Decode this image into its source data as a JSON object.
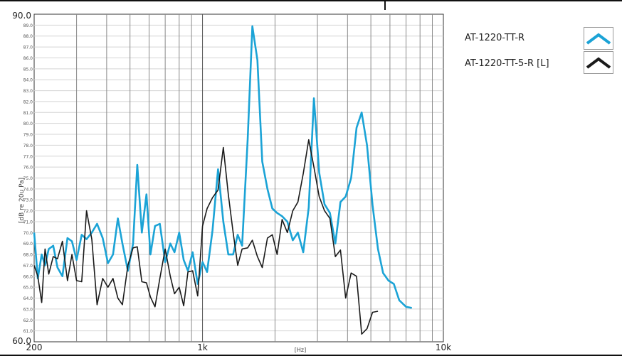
{
  "chart_data": {
    "type": "line",
    "title": "",
    "xlabel": "[Hz]",
    "ylabel": "[dB re 20u Pa]",
    "x_scale": "log",
    "xlim": [
      200,
      10000
    ],
    "ylim": [
      60,
      90
    ],
    "grid": true,
    "legend_position": "right",
    "x_ticks": [
      {
        "value": 200,
        "label": "200"
      },
      {
        "value": 1000,
        "label": "1k"
      },
      {
        "value": 10000,
        "label": "10k"
      }
    ],
    "y_ticks_major": [
      {
        "value": 90,
        "label": "90.0"
      },
      {
        "value": 60,
        "label": "60.0"
      }
    ],
    "y_ticks_minor": [
      "89.0",
      "88.0",
      "87.0",
      "86.0",
      "85.0",
      "84.0",
      "83.0",
      "82.0",
      "81.0",
      "80.0",
      "79.0",
      "78.0",
      "77.0",
      "76.0",
      "75.0",
      "74.0",
      "73.0",
      "72.0",
      "71.0",
      "70.0",
      "69.0",
      "68.0",
      "67.0",
      "66.0",
      "65.0",
      "64.0",
      "63.0",
      "62.0",
      "61.0"
    ],
    "series": [
      {
        "name": "AT-1220-TT-R",
        "color": "#1ba3d6",
        "points": [
          [
            200,
            70.0
          ],
          [
            207,
            65.8
          ],
          [
            215,
            68.0
          ],
          [
            222,
            67.0
          ],
          [
            230,
            68.5
          ],
          [
            240,
            68.8
          ],
          [
            250,
            66.8
          ],
          [
            262,
            66.0
          ],
          [
            275,
            69.5
          ],
          [
            287,
            69.2
          ],
          [
            300,
            67.5
          ],
          [
            315,
            69.8
          ],
          [
            330,
            69.4
          ],
          [
            347,
            70.0
          ],
          [
            365,
            70.8
          ],
          [
            385,
            69.5
          ],
          [
            405,
            67.2
          ],
          [
            425,
            68.0
          ],
          [
            445,
            71.3
          ],
          [
            465,
            69.0
          ],
          [
            490,
            66.5
          ],
          [
            515,
            69.0
          ],
          [
            536,
            76.2
          ],
          [
            560,
            70.0
          ],
          [
            585,
            73.5
          ],
          [
            608,
            68.0
          ],
          [
            635,
            70.6
          ],
          [
            665,
            70.8
          ],
          [
            700,
            67.3
          ],
          [
            735,
            69.0
          ],
          [
            765,
            68.2
          ],
          [
            800,
            70.0
          ],
          [
            835,
            67.5
          ],
          [
            870,
            66.5
          ],
          [
            910,
            68.2
          ],
          [
            955,
            65.3
          ],
          [
            1000,
            67.3
          ],
          [
            1045,
            66.4
          ],
          [
            1100,
            70.2
          ],
          [
            1160,
            75.8
          ],
          [
            1220,
            71.0
          ],
          [
            1280,
            68.0
          ],
          [
            1340,
            68.0
          ],
          [
            1400,
            69.8
          ],
          [
            1460,
            68.8
          ],
          [
            1540,
            78.5
          ],
          [
            1610,
            88.9
          ],
          [
            1690,
            85.8
          ],
          [
            1770,
            76.5
          ],
          [
            1860,
            74.0
          ],
          [
            1950,
            72.2
          ],
          [
            2040,
            71.8
          ],
          [
            2140,
            71.5
          ],
          [
            2250,
            71.0
          ],
          [
            2370,
            69.3
          ],
          [
            2490,
            70.0
          ],
          [
            2620,
            68.2
          ],
          [
            2760,
            72.3
          ],
          [
            2900,
            82.3
          ],
          [
            3050,
            75.5
          ],
          [
            3210,
            72.6
          ],
          [
            3380,
            71.8
          ],
          [
            3560,
            69.0
          ],
          [
            3740,
            72.8
          ],
          [
            3930,
            73.3
          ],
          [
            4140,
            75.0
          ],
          [
            4360,
            79.6
          ],
          [
            4580,
            81.0
          ],
          [
            4820,
            78.0
          ],
          [
            5080,
            72.5
          ],
          [
            5350,
            68.5
          ],
          [
            5620,
            66.3
          ],
          [
            5920,
            65.6
          ],
          [
            6230,
            65.3
          ],
          [
            6560,
            63.8
          ],
          [
            7000,
            63.2
          ],
          [
            7400,
            63.1
          ]
        ]
      },
      {
        "name": "AT-1220-TT-5-R [L]",
        "color": "#1a1a1a",
        "points": [
          [
            200,
            67.0
          ],
          [
            207,
            66.0
          ],
          [
            215,
            63.6
          ],
          [
            222,
            68.5
          ],
          [
            230,
            66.2
          ],
          [
            240,
            67.8
          ],
          [
            250,
            67.6
          ],
          [
            262,
            69.2
          ],
          [
            275,
            65.6
          ],
          [
            287,
            68.0
          ],
          [
            300,
            65.6
          ],
          [
            315,
            65.5
          ],
          [
            330,
            72.0
          ],
          [
            347,
            69.4
          ],
          [
            365,
            63.4
          ],
          [
            385,
            65.8
          ],
          [
            405,
            65.0
          ],
          [
            425,
            65.8
          ],
          [
            445,
            64.0
          ],
          [
            465,
            63.4
          ],
          [
            490,
            67.0
          ],
          [
            515,
            68.6
          ],
          [
            536,
            68.7
          ],
          [
            560,
            65.5
          ],
          [
            585,
            65.4
          ],
          [
            608,
            64.1
          ],
          [
            635,
            63.2
          ],
          [
            665,
            65.8
          ],
          [
            700,
            68.5
          ],
          [
            735,
            66.0
          ],
          [
            765,
            64.4
          ],
          [
            800,
            65.0
          ],
          [
            835,
            63.3
          ],
          [
            870,
            66.4
          ],
          [
            910,
            66.5
          ],
          [
            955,
            64.2
          ],
          [
            1000,
            70.6
          ],
          [
            1045,
            72.2
          ],
          [
            1100,
            73.2
          ],
          [
            1160,
            73.9
          ],
          [
            1220,
            77.8
          ],
          [
            1280,
            73.5
          ],
          [
            1340,
            70.0
          ],
          [
            1400,
            67.0
          ],
          [
            1460,
            68.5
          ],
          [
            1540,
            68.6
          ],
          [
            1610,
            69.3
          ],
          [
            1690,
            67.8
          ],
          [
            1770,
            66.8
          ],
          [
            1860,
            69.5
          ],
          [
            1950,
            69.8
          ],
          [
            2040,
            68.0
          ],
          [
            2140,
            71.2
          ],
          [
            2250,
            70.0
          ],
          [
            2370,
            72.0
          ],
          [
            2490,
            72.8
          ],
          [
            2620,
            75.4
          ],
          [
            2760,
            78.5
          ],
          [
            2900,
            76.0
          ],
          [
            3050,
            73.3
          ],
          [
            3210,
            72.0
          ],
          [
            3380,
            71.3
          ],
          [
            3560,
            67.8
          ],
          [
            3740,
            68.4
          ],
          [
            3930,
            64.0
          ],
          [
            4140,
            66.3
          ],
          [
            4360,
            66.0
          ],
          [
            4580,
            60.7
          ],
          [
            4820,
            61.2
          ],
          [
            5080,
            62.7
          ],
          [
            5350,
            62.8
          ]
        ]
      }
    ],
    "legend": [
      {
        "label": "AT-1220-TT-R",
        "color": "#1ba3d6"
      },
      {
        "label": "AT-1220-TT-5-R [L]",
        "color": "#1a1a1a"
      }
    ]
  }
}
